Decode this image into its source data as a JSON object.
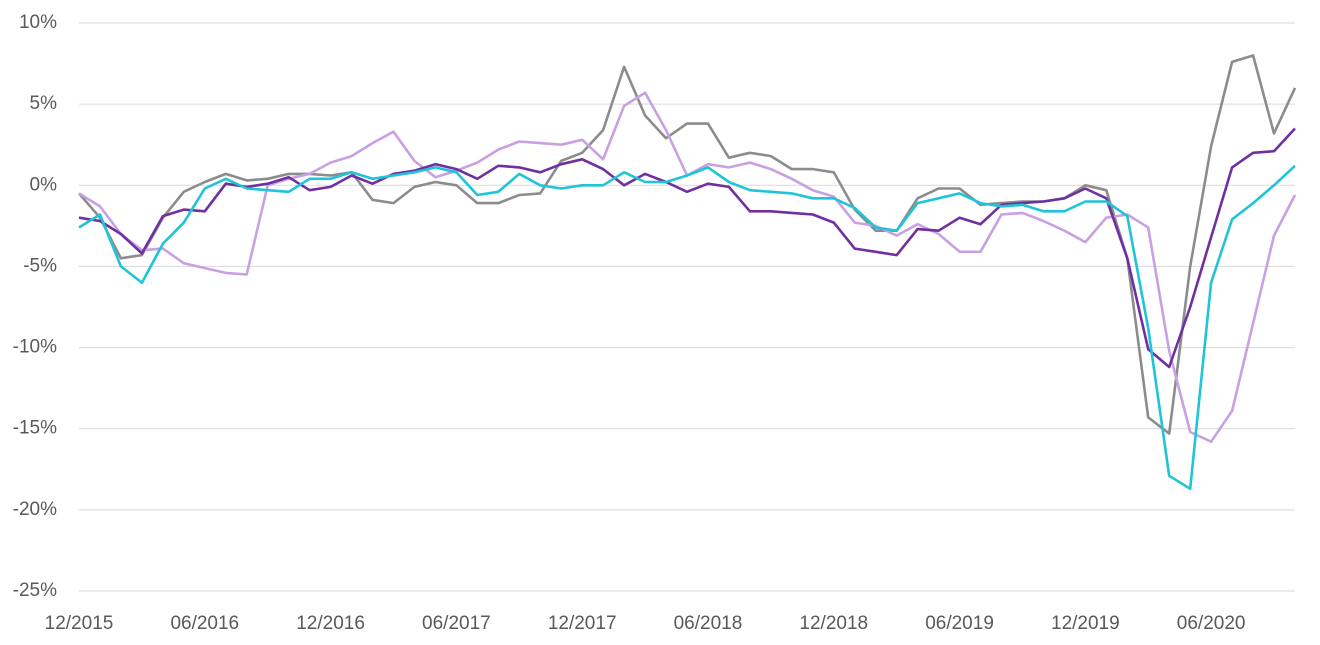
{
  "chart_data": {
    "type": "line",
    "categories": [
      "12/2015",
      null,
      null,
      null,
      null,
      null,
      "06/2016",
      null,
      null,
      null,
      null,
      null,
      "12/2016",
      null,
      null,
      null,
      null,
      null,
      "06/2017",
      null,
      null,
      null,
      null,
      null,
      "12/2017",
      null,
      null,
      null,
      null,
      null,
      "06/2018",
      null,
      null,
      null,
      null,
      null,
      "12/2018",
      null,
      null,
      null,
      null,
      null,
      "06/2019",
      null,
      null,
      null,
      null,
      null,
      "12/2019",
      null,
      null,
      null,
      null,
      null,
      "06/2020",
      null,
      null,
      null,
      null
    ],
    "series": [
      {
        "color": "#8c8c8c",
        "values": [
          -0.5,
          -2,
          -4.5,
          -4.3,
          -2,
          -0.4,
          0.2,
          0.7,
          0.3,
          0.4,
          0.7,
          0.7,
          0.6,
          0.8,
          -0.9,
          -1.1,
          -0.1,
          0.2,
          0,
          -1.1,
          -1.1,
          -0.6,
          -0.5,
          1.5,
          2,
          3.4,
          7.3,
          4.3,
          2.9,
          3.8,
          3.8,
          1.7,
          2,
          1.8,
          1,
          1,
          0.8,
          -1.5,
          -2.8,
          -2.8,
          -0.8,
          -0.2,
          -0.2,
          -1.2,
          -1.1,
          -1,
          -1,
          -0.8,
          0,
          -0.3,
          -4.5,
          -14.3,
          -15.3,
          -5,
          2.4,
          7.6,
          8,
          3.2,
          6
        ]
      },
      {
        "color": "#c9a0e2",
        "values": [
          -0.5,
          -1.3,
          -3,
          -4,
          -3.9,
          -4.8,
          -5.1,
          -5.4,
          -5.5,
          0,
          0.4,
          0.7,
          1.4,
          1.8,
          2.6,
          3.3,
          1.5,
          0.5,
          0.9,
          1.4,
          2.2,
          2.7,
          2.6,
          2.5,
          2.8,
          1.6,
          4.9,
          5.7,
          3.4,
          0.6,
          1.3,
          1.1,
          1.4,
          1,
          0.4,
          -0.3,
          -0.7,
          -2.3,
          -2.5,
          -3.1,
          -2.4,
          -3,
          -4.1,
          -4.1,
          -1.8,
          -1.7,
          -2.2,
          -2.8,
          -3.5,
          -2,
          -1.8,
          -2.6,
          -10.2,
          -15.2,
          -15.8,
          -13.9,
          -8.5,
          -3.1,
          -0.6
        ]
      },
      {
        "color": "#7030a0",
        "values": [
          -2,
          -2.2,
          -3,
          -4.2,
          -1.9,
          -1.5,
          -1.6,
          0.1,
          -0.1,
          0.1,
          0.5,
          -0.3,
          -0.1,
          0.6,
          0.1,
          0.7,
          0.9,
          1.3,
          1,
          0.4,
          1.2,
          1.1,
          0.8,
          1.3,
          1.6,
          1,
          0,
          0.7,
          0.2,
          -0.4,
          0.1,
          -0.1,
          -1.6,
          -1.6,
          -1.7,
          -1.8,
          -2.3,
          -3.9,
          -4.1,
          -4.3,
          -2.7,
          -2.8,
          -2,
          -2.4,
          -1.2,
          -1.1,
          -1,
          -0.8,
          -0.2,
          -0.8,
          -4.5,
          -10.1,
          -11.2,
          -7.5,
          -3.2,
          1.1,
          2,
          2.1,
          3.5
        ]
      },
      {
        "color": "#1fc4d8",
        "values": [
          -2.6,
          -1.8,
          -5,
          -6,
          -3.6,
          -2.3,
          -0.2,
          0.4,
          -0.2,
          -0.3,
          -0.4,
          0.4,
          0.4,
          0.8,
          0.4,
          0.6,
          0.8,
          1.1,
          0.8,
          -0.6,
          -0.4,
          0.7,
          0,
          -0.2,
          0,
          0,
          0.8,
          0.2,
          0.2,
          0.6,
          1.1,
          0.2,
          -0.3,
          -0.4,
          -0.5,
          -0.8,
          -0.8,
          -1.4,
          -2.6,
          -2.8,
          -1.1,
          -0.8,
          -0.5,
          -1.1,
          -1.3,
          -1.2,
          -1.6,
          -1.6,
          -1,
          -1,
          -1.9,
          -8.8,
          -17.9,
          -18.7,
          -6,
          -2.1,
          -1.1,
          0,
          1.2
        ]
      }
    ],
    "ylim": [
      -25,
      10
    ],
    "yticks": [
      {
        "value": -25,
        "label": "-25%"
      },
      {
        "value": -20,
        "label": "-20%"
      },
      {
        "value": -15,
        "label": "-15%"
      },
      {
        "value": -10,
        "label": "-10%"
      },
      {
        "value": -5,
        "label": "-5%"
      },
      {
        "value": 0,
        "label": "0%"
      },
      {
        "value": 5,
        "label": "5%"
      },
      {
        "value": 10,
        "label": "10%"
      }
    ],
    "grid": true
  }
}
